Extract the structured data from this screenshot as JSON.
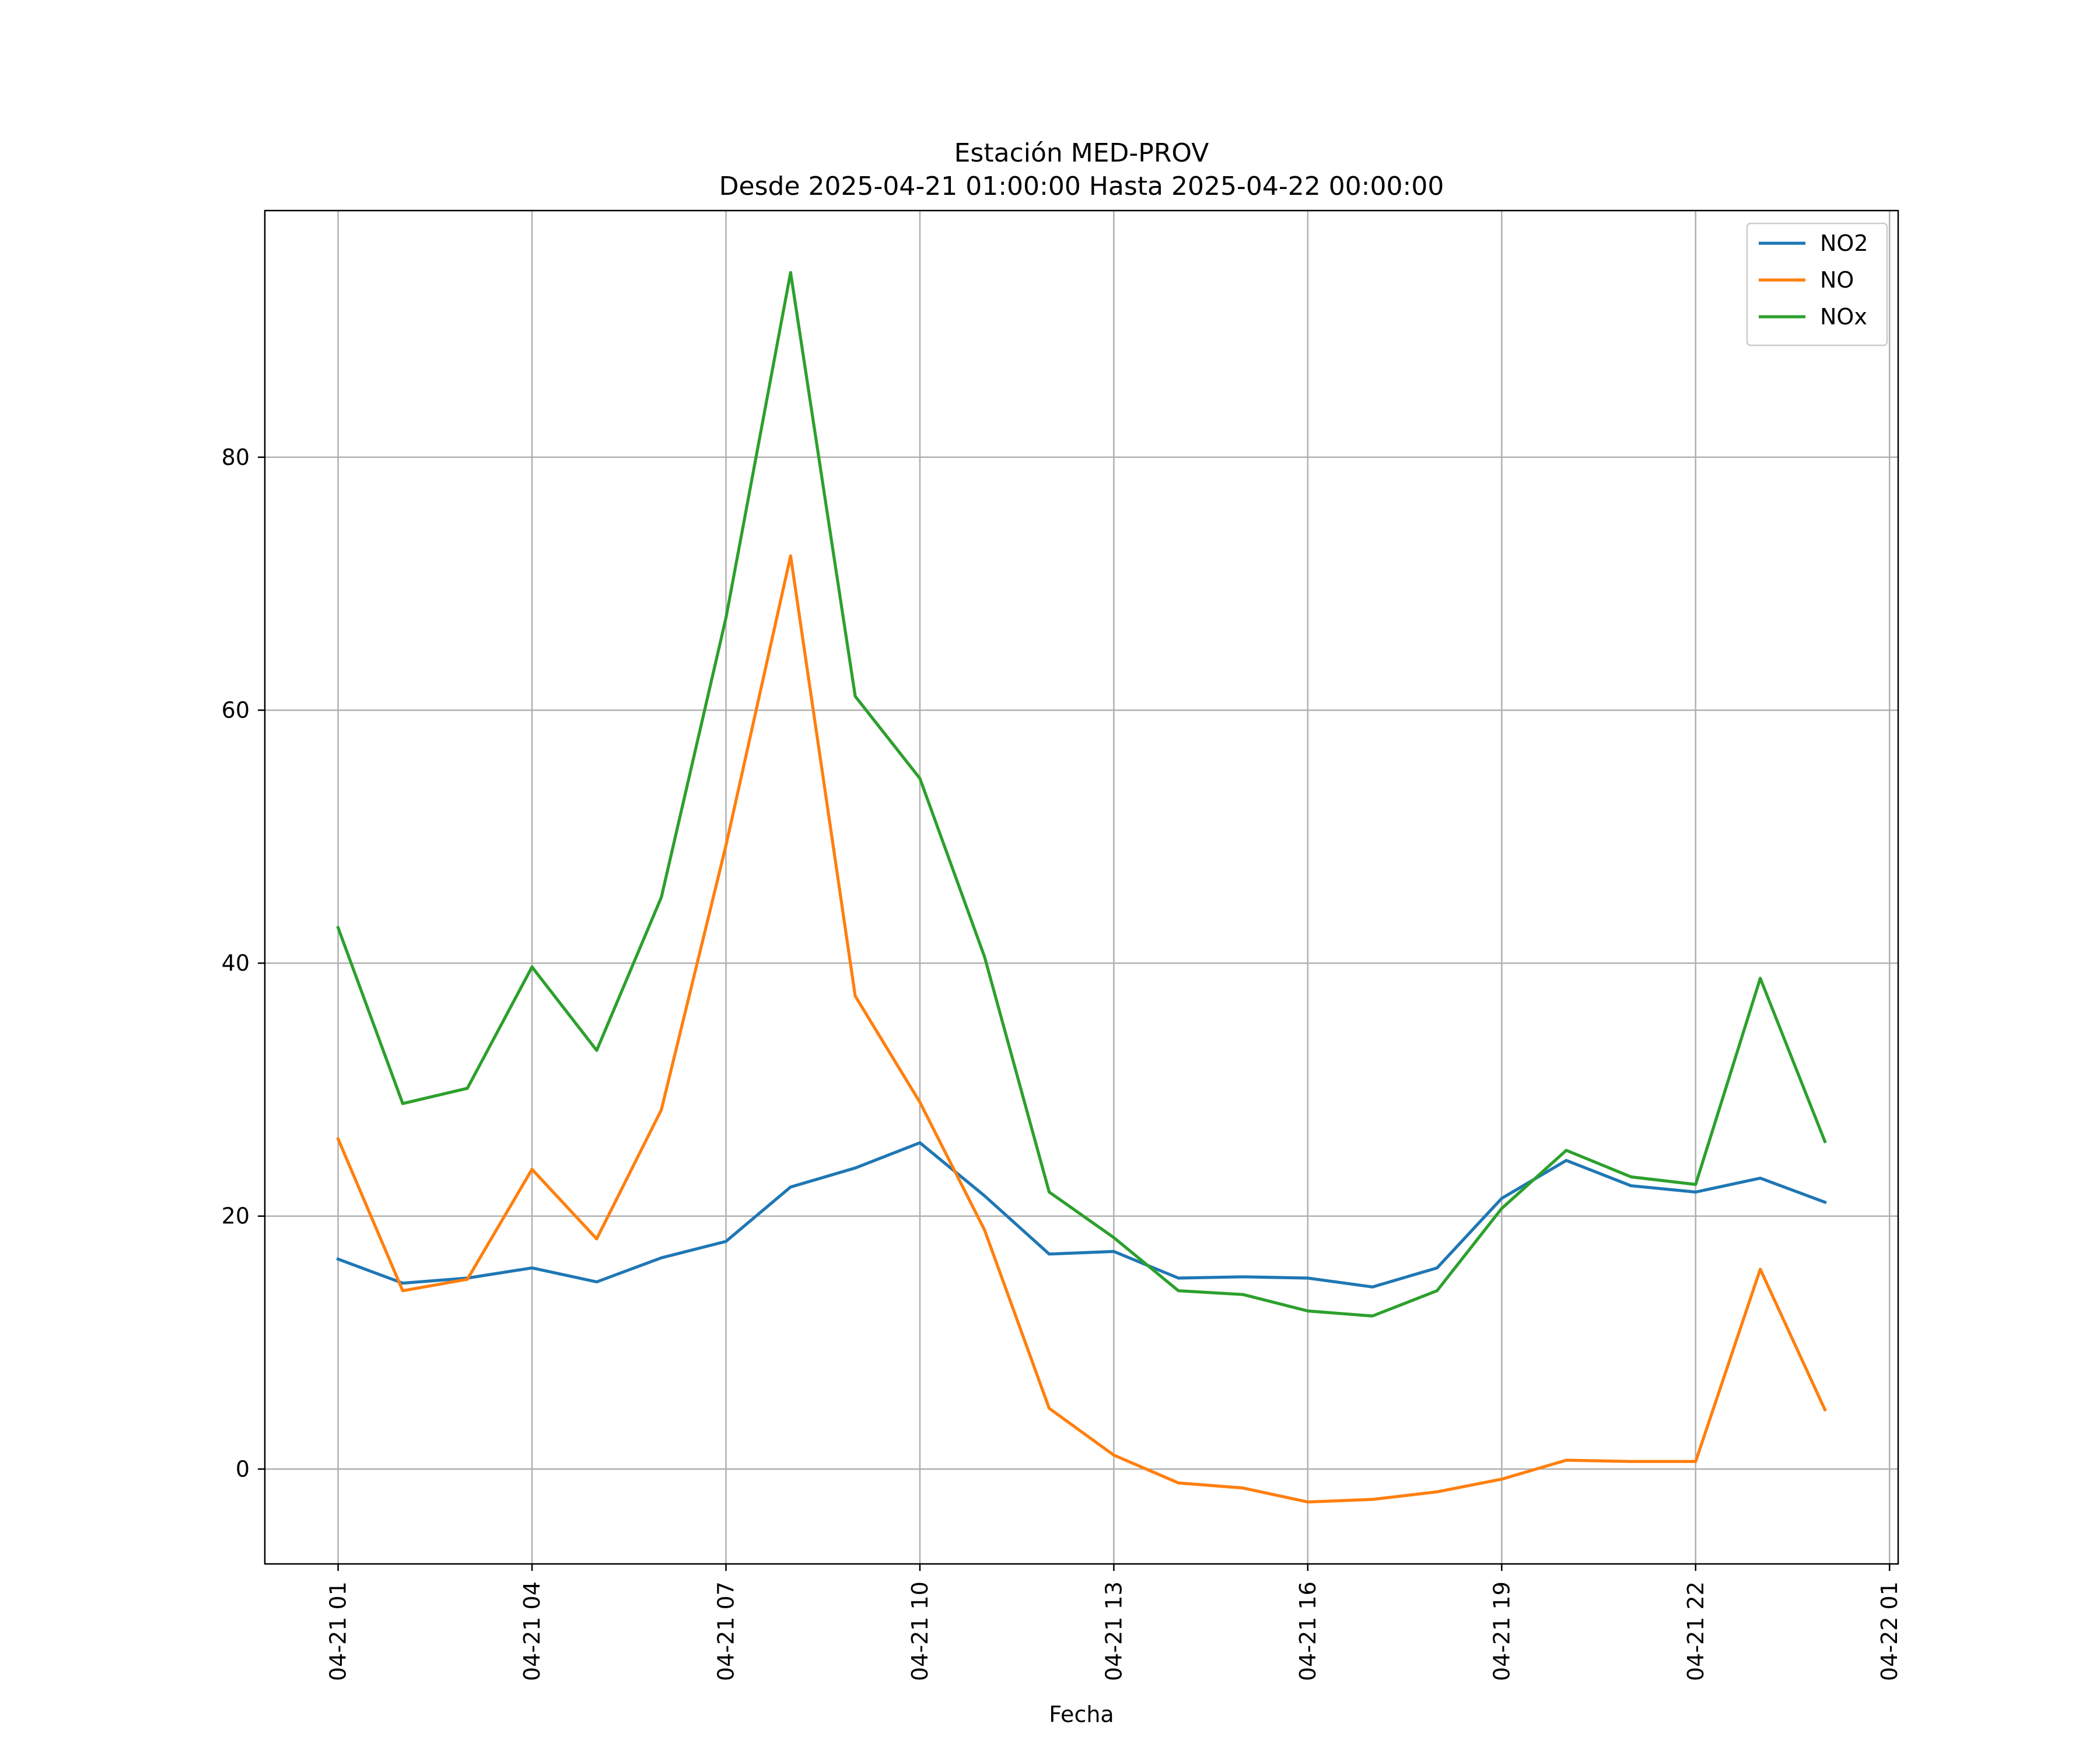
{
  "chart_data": {
    "type": "line",
    "title": "Estación MED-PROV",
    "subtitle": "Desde 2025-04-21 01:00:00 Hasta 2025-04-22 00:00:00",
    "xlabel": "Fecha",
    "ylabel": "",
    "x": [
      "2025-04-21 01:00",
      "2025-04-21 02:00",
      "2025-04-21 03:00",
      "2025-04-21 04:00",
      "2025-04-21 05:00",
      "2025-04-21 06:00",
      "2025-04-21 07:00",
      "2025-04-21 08:00",
      "2025-04-21 09:00",
      "2025-04-21 10:00",
      "2025-04-21 11:00",
      "2025-04-21 12:00",
      "2025-04-21 13:00",
      "2025-04-21 14:00",
      "2025-04-21 15:00",
      "2025-04-21 16:00",
      "2025-04-21 17:00",
      "2025-04-21 18:00",
      "2025-04-21 19:00",
      "2025-04-21 20:00",
      "2025-04-21 21:00",
      "2025-04-21 22:00",
      "2025-04-21 23:00",
      "2025-04-22 00:00"
    ],
    "x_ticks": [
      "04-21 01",
      "04-21 04",
      "04-21 07",
      "04-21 10",
      "04-21 13",
      "04-21 16",
      "04-21 19",
      "04-21 22",
      "04-22 01"
    ],
    "x_tick_values": [
      "2025-04-21 01:00",
      "2025-04-21 04:00",
      "2025-04-21 07:00",
      "2025-04-21 10:00",
      "2025-04-21 13:00",
      "2025-04-21 16:00",
      "2025-04-21 19:00",
      "2025-04-21 22:00",
      "2025-04-22 01:00"
    ],
    "xlim": [
      "2025-04-20 23:52",
      "2025-04-22 01:08"
    ],
    "y_ticks": [
      0,
      20,
      40,
      60,
      80
    ],
    "ylim": [
      -7.5,
      99.5
    ],
    "grid": true,
    "legend_position": "top-right",
    "series": [
      {
        "name": "NO2",
        "color": "#1f77b4",
        "values": [
          16.6,
          14.7,
          15.1,
          15.9,
          14.8,
          16.7,
          18.0,
          22.3,
          23.8,
          25.8,
          21.6,
          17.0,
          17.2,
          15.1,
          15.2,
          15.1,
          14.4,
          15.9,
          21.4,
          24.4,
          22.4,
          21.9,
          23.0,
          21.1
        ]
      },
      {
        "name": "NO",
        "color": "#ff7f0e",
        "values": [
          26.1,
          14.1,
          15.0,
          23.7,
          18.2,
          28.4,
          49.3,
          72.2,
          37.4,
          29.0,
          18.9,
          4.8,
          1.1,
          -1.1,
          -1.5,
          -2.6,
          -2.4,
          -1.8,
          -0.8,
          0.7,
          0.6,
          0.6,
          15.8,
          4.7
        ]
      },
      {
        "name": "NOx",
        "color": "#2ca02c",
        "values": [
          42.8,
          28.9,
          30.1,
          39.7,
          33.1,
          45.2,
          67.3,
          94.6,
          61.1,
          54.6,
          40.5,
          21.9,
          18.3,
          14.1,
          13.8,
          12.5,
          12.1,
          14.1,
          20.6,
          25.2,
          23.1,
          22.5,
          38.8,
          25.9
        ]
      }
    ]
  }
}
